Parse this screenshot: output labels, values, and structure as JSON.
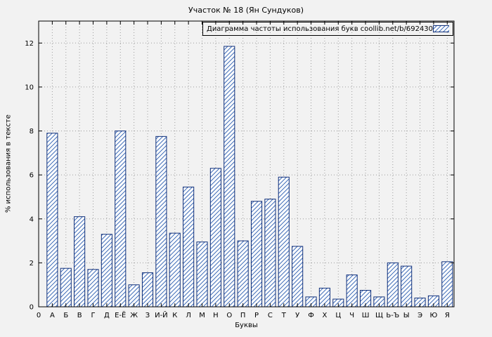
{
  "chart_data": {
    "type": "bar",
    "title": "Участок № 18 (Ян Сундуков)",
    "legend": "Диаграмма частоты использования букв coollib.net/b/692430",
    "legend_position": "top-right",
    "xlabel": "Буквы",
    "ylabel": "% использования в тексте",
    "origin_label": "0",
    "categories": [
      "А",
      "Б",
      "В",
      "Г",
      "Д",
      "Е-Ё",
      "Ж",
      "З",
      "И-Й",
      "К",
      "Л",
      "М",
      "Н",
      "О",
      "П",
      "Р",
      "С",
      "Т",
      "У",
      "Ф",
      "Х",
      "Ц",
      "Ч",
      "Ш",
      "Щ",
      "Ь-Ъ",
      "Ы",
      "Э",
      "Ю",
      "Я"
    ],
    "values": [
      7.9,
      1.75,
      4.1,
      1.7,
      3.3,
      8.0,
      1.0,
      1.55,
      7.75,
      3.35,
      5.45,
      2.95,
      6.3,
      11.85,
      3.0,
      4.8,
      4.9,
      5.9,
      2.75,
      0.45,
      0.85,
      0.35,
      1.45,
      0.75,
      0.45,
      2.0,
      1.85,
      0.4,
      0.5,
      2.05
    ],
    "yticks": [
      0,
      2,
      4,
      6,
      8,
      10,
      12
    ],
    "ylim": [
      0,
      13
    ],
    "grid": true,
    "colors": {
      "bar_border": "#0f2f7a",
      "bar_hatch": "#3f6db8",
      "grid": "#9c9c9c",
      "background": "#f2f2f2",
      "axis": "#000000"
    }
  }
}
